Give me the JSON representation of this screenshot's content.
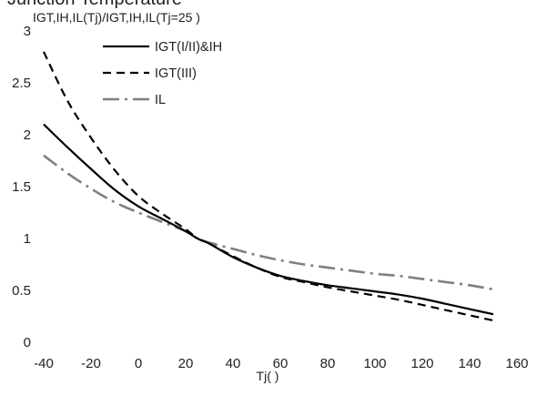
{
  "chart_data": {
    "type": "line",
    "title_partial": "Junction Temperature",
    "ylabel": "IGT,IH,IL(Tj)/IGT,IH,IL(Tj=25 )",
    "xlabel": "Tj( )",
    "xlim": [
      -40,
      160
    ],
    "ylim": [
      0,
      3
    ],
    "x_ticks": [
      -40,
      -20,
      0,
      20,
      40,
      60,
      80,
      100,
      120,
      140,
      160
    ],
    "y_ticks": [
      0,
      0.5,
      1,
      1.5,
      2,
      2.5,
      3
    ],
    "grid": false,
    "legend_position": "top-left",
    "series": [
      {
        "name": "IGT(I/II)&IH",
        "style": "solid",
        "color": "#000000",
        "x": [
          -40,
          -30,
          -20,
          -10,
          0,
          10,
          20,
          25,
          30,
          40,
          50,
          60,
          70,
          80,
          90,
          100,
          110,
          120,
          130,
          140,
          150
        ],
        "y": [
          2.1,
          1.88,
          1.67,
          1.47,
          1.31,
          1.19,
          1.07,
          1.0,
          0.95,
          0.82,
          0.72,
          0.64,
          0.59,
          0.55,
          0.52,
          0.49,
          0.46,
          0.42,
          0.37,
          0.32,
          0.27
        ]
      },
      {
        "name": "IGT(III)",
        "style": "dashed",
        "color": "#000000",
        "x": [
          -40,
          -30,
          -20,
          -10,
          0,
          10,
          20,
          25,
          30,
          40,
          50,
          60,
          70,
          80,
          90,
          100,
          110,
          120,
          130,
          140,
          150
        ],
        "y": [
          2.8,
          2.33,
          1.97,
          1.66,
          1.41,
          1.24,
          1.09,
          1.0,
          0.95,
          0.83,
          0.72,
          0.63,
          0.58,
          0.53,
          0.49,
          0.45,
          0.41,
          0.36,
          0.31,
          0.26,
          0.21
        ]
      },
      {
        "name": "IL",
        "style": "dashdot",
        "color": "#7f7f7f",
        "x": [
          -40,
          -30,
          -20,
          -10,
          0,
          10,
          20,
          25,
          30,
          40,
          50,
          60,
          70,
          80,
          90,
          100,
          110,
          120,
          130,
          140,
          150
        ],
        "y": [
          1.8,
          1.63,
          1.48,
          1.35,
          1.25,
          1.16,
          1.07,
          1.0,
          0.96,
          0.9,
          0.84,
          0.79,
          0.75,
          0.72,
          0.69,
          0.66,
          0.64,
          0.61,
          0.58,
          0.55,
          0.51
        ]
      }
    ]
  }
}
